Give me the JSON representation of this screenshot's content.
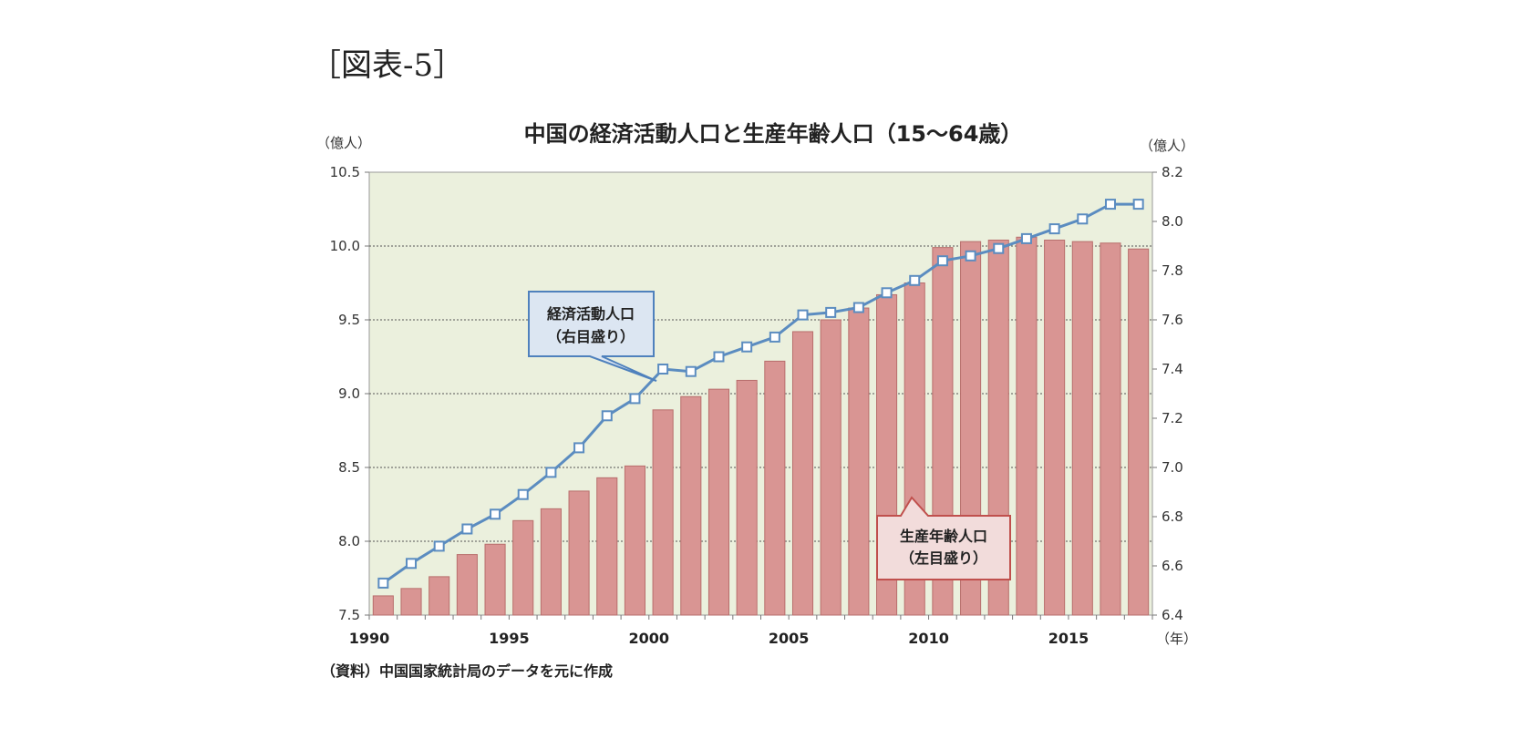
{
  "figure_label": "［図表-5］",
  "chart_data": {
    "type": "bar",
    "title": "中国の経済活動人口と生産年齢人口（15～64歳）",
    "left_axis": {
      "unit": "（億人）",
      "range": [
        7.5,
        10.5
      ],
      "ticks": [
        "7.5",
        "8.0",
        "8.5",
        "9.0",
        "9.5",
        "10.0",
        "10.5"
      ]
    },
    "right_axis": {
      "unit": "（億人）",
      "range": [
        6.4,
        8.2
      ],
      "ticks": [
        "6.4",
        "6.6",
        "6.8",
        "7.0",
        "7.2",
        "7.4",
        "7.6",
        "7.8",
        "8.0",
        "8.2"
      ]
    },
    "x_unit": "（年）",
    "x_ticks": [
      "1990",
      "1995",
      "2000",
      "2005",
      "2010",
      "2015"
    ],
    "years": [
      1990,
      1991,
      1992,
      1993,
      1994,
      1995,
      1996,
      1997,
      1998,
      1999,
      2000,
      2001,
      2002,
      2003,
      2004,
      2005,
      2006,
      2007,
      2008,
      2009,
      2010,
      2011,
      2012,
      2013,
      2014,
      2015,
      2016,
      2017
    ],
    "grid": "horizontal dotted",
    "series": [
      {
        "name": "生産年齢人口",
        "axis_note": "（左目盛り）",
        "type": "bar",
        "axis": "left",
        "color": "#d99593",
        "values": [
          7.63,
          7.68,
          7.76,
          7.91,
          7.98,
          8.14,
          8.22,
          8.34,
          8.43,
          8.51,
          8.89,
          8.98,
          9.03,
          9.09,
          9.22,
          9.42,
          9.5,
          9.58,
          9.67,
          9.75,
          9.99,
          10.03,
          10.04,
          10.06,
          10.04,
          10.03,
          10.02,
          9.98
        ]
      },
      {
        "name": "経済活動人口",
        "axis_note": "（右目盛り）",
        "type": "line",
        "axis": "right",
        "color": "#5b8cc0",
        "values": [
          6.53,
          6.61,
          6.68,
          6.75,
          6.81,
          6.89,
          6.98,
          7.08,
          7.21,
          7.28,
          7.4,
          7.39,
          7.45,
          7.49,
          7.53,
          7.62,
          7.63,
          7.65,
          7.71,
          7.76,
          7.84,
          7.86,
          7.89,
          7.93,
          7.97,
          8.01,
          8.07,
          8.07
        ]
      }
    ],
    "source": "（資料）中国国家統計局のデータを元に作成"
  },
  "colors": {
    "plot_background": "#ebf0dd",
    "bar_fill": "#d99593",
    "bar_stroke": "#b86e6c",
    "line": "#5b8cc0",
    "callout_blue_fill": "#dce6f2",
    "callout_blue_stroke": "#4f81bd",
    "callout_red_fill": "#f2dcdb",
    "callout_red_stroke": "#c0504d"
  }
}
